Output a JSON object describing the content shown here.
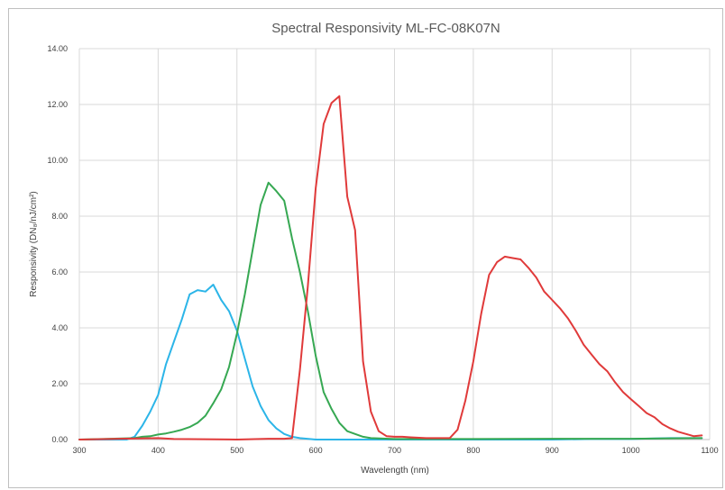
{
  "chart_data": {
    "type": "line",
    "title": "Spectral Responsivity ML-FC-08K07N",
    "xlabel": "Wavelength (nm)",
    "ylabel": "Responsivity (DN₈/nJ/cm²)",
    "xlim": [
      300,
      1100
    ],
    "ylim": [
      0,
      14
    ],
    "grid": true,
    "legend": "none",
    "x_ticks": [
      "300",
      "400",
      "500",
      "600",
      "700",
      "800",
      "900",
      "1000",
      "1100"
    ],
    "y_ticks": [
      "0.00",
      "2.00",
      "4.00",
      "6.00",
      "8.00",
      "10.00",
      "12.00",
      "14.00"
    ],
    "series": [
      {
        "color": "#2cb5e8",
        "points": [
          [
            300,
            0
          ],
          [
            360,
            0
          ],
          [
            370,
            0.1
          ],
          [
            380,
            0.5
          ],
          [
            390,
            1.0
          ],
          [
            400,
            1.6
          ],
          [
            410,
            2.7
          ],
          [
            420,
            3.5
          ],
          [
            430,
            4.3
          ],
          [
            440,
            5.2
          ],
          [
            450,
            5.35
          ],
          [
            460,
            5.3
          ],
          [
            470,
            5.55
          ],
          [
            480,
            5.0
          ],
          [
            490,
            4.6
          ],
          [
            500,
            3.9
          ],
          [
            510,
            2.9
          ],
          [
            520,
            1.9
          ],
          [
            530,
            1.2
          ],
          [
            540,
            0.7
          ],
          [
            550,
            0.4
          ],
          [
            560,
            0.2
          ],
          [
            570,
            0.1
          ],
          [
            580,
            0.05
          ],
          [
            600,
            0
          ],
          [
            700,
            0
          ],
          [
            800,
            0
          ],
          [
            900,
            0
          ],
          [
            950,
            0.02
          ],
          [
            1000,
            0.02
          ],
          [
            1050,
            0.05
          ],
          [
            1090,
            0.05
          ]
        ]
      },
      {
        "color": "#36a852",
        "points": [
          [
            300,
            0
          ],
          [
            370,
            0.05
          ],
          [
            380,
            0.1
          ],
          [
            390,
            0.12
          ],
          [
            400,
            0.18
          ],
          [
            410,
            0.22
          ],
          [
            420,
            0.28
          ],
          [
            430,
            0.35
          ],
          [
            440,
            0.45
          ],
          [
            450,
            0.6
          ],
          [
            460,
            0.85
          ],
          [
            470,
            1.3
          ],
          [
            480,
            1.8
          ],
          [
            490,
            2.6
          ],
          [
            500,
            3.8
          ],
          [
            510,
            5.2
          ],
          [
            520,
            6.8
          ],
          [
            530,
            8.4
          ],
          [
            540,
            9.2
          ],
          [
            550,
            8.9
          ],
          [
            560,
            8.55
          ],
          [
            570,
            7.2
          ],
          [
            580,
            6.0
          ],
          [
            590,
            4.6
          ],
          [
            600,
            3.0
          ],
          [
            610,
            1.7
          ],
          [
            620,
            1.1
          ],
          [
            630,
            0.6
          ],
          [
            640,
            0.3
          ],
          [
            650,
            0.2
          ],
          [
            660,
            0.1
          ],
          [
            670,
            0.05
          ],
          [
            700,
            0.02
          ],
          [
            800,
            0.02
          ],
          [
            900,
            0.03
          ],
          [
            1000,
            0.03
          ],
          [
            1090,
            0.05
          ]
        ]
      },
      {
        "color": "#e03a3a",
        "points": [
          [
            300,
            0
          ],
          [
            400,
            0.05
          ],
          [
            420,
            0.02
          ],
          [
            500,
            0
          ],
          [
            540,
            0.03
          ],
          [
            560,
            0.03
          ],
          [
            570,
            0.05
          ],
          [
            580,
            2.5
          ],
          [
            590,
            5.5
          ],
          [
            600,
            9.0
          ],
          [
            610,
            11.3
          ],
          [
            620,
            12.05
          ],
          [
            630,
            12.3
          ],
          [
            640,
            8.7
          ],
          [
            650,
            7.5
          ],
          [
            660,
            2.8
          ],
          [
            670,
            1.0
          ],
          [
            680,
            0.3
          ],
          [
            690,
            0.12
          ],
          [
            700,
            0.1
          ],
          [
            710,
            0.1
          ],
          [
            720,
            0.08
          ],
          [
            740,
            0.05
          ],
          [
            760,
            0.05
          ],
          [
            770,
            0.05
          ],
          [
            780,
            0.35
          ],
          [
            790,
            1.4
          ],
          [
            800,
            2.8
          ],
          [
            810,
            4.5
          ],
          [
            820,
            5.9
          ],
          [
            830,
            6.35
          ],
          [
            840,
            6.55
          ],
          [
            850,
            6.5
          ],
          [
            860,
            6.45
          ],
          [
            870,
            6.15
          ],
          [
            880,
            5.8
          ],
          [
            890,
            5.3
          ],
          [
            900,
            5.0
          ],
          [
            910,
            4.7
          ],
          [
            920,
            4.35
          ],
          [
            930,
            3.9
          ],
          [
            940,
            3.4
          ],
          [
            950,
            3.05
          ],
          [
            960,
            2.7
          ],
          [
            970,
            2.45
          ],
          [
            980,
            2.05
          ],
          [
            990,
            1.7
          ],
          [
            1000,
            1.45
          ],
          [
            1010,
            1.2
          ],
          [
            1020,
            0.95
          ],
          [
            1030,
            0.8
          ],
          [
            1040,
            0.55
          ],
          [
            1050,
            0.4
          ],
          [
            1060,
            0.28
          ],
          [
            1070,
            0.2
          ],
          [
            1080,
            0.12
          ],
          [
            1090,
            0.15
          ]
        ]
      }
    ]
  }
}
